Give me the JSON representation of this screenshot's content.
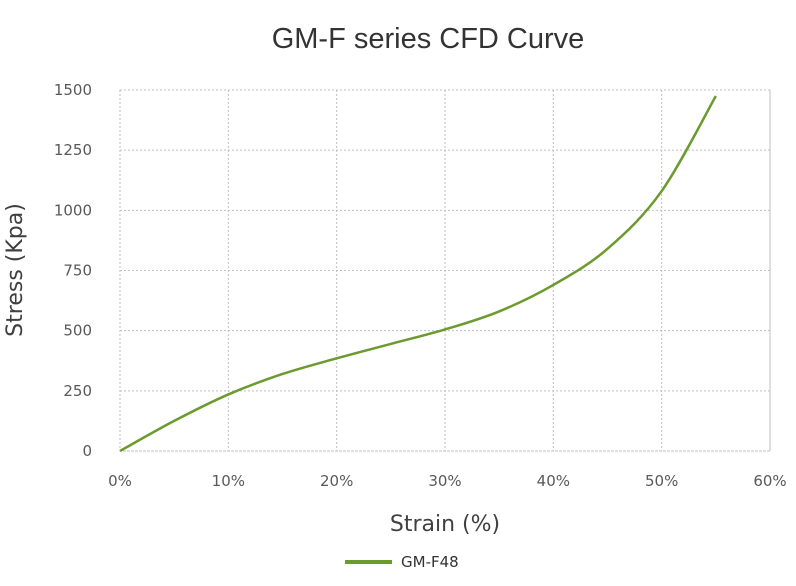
{
  "chart_data": {
    "type": "line",
    "title": "GM-F series CFD Curve",
    "xlabel": "Strain (%)",
    "ylabel": "Stress (Kpa)",
    "xlim": [
      0,
      60
    ],
    "ylim": [
      0,
      1500
    ],
    "x_ticks": [
      0,
      10,
      20,
      30,
      40,
      50,
      60
    ],
    "x_tick_labels": [
      "0%",
      "10%",
      "20%",
      "30%",
      "40%",
      "50%",
      "60%"
    ],
    "y_ticks": [
      0,
      250,
      500,
      750,
      1000,
      1250,
      1500
    ],
    "y_tick_labels": [
      "0",
      "250",
      "500",
      "750",
      "1000",
      "1250",
      "1500"
    ],
    "grid": true,
    "legend_position": "bottom-center",
    "series": [
      {
        "name": "GM-F48",
        "color": "#6b9a2e",
        "x": [
          0,
          5,
          10,
          15,
          20,
          25,
          30,
          35,
          40,
          45,
          50,
          55
        ],
        "y": [
          0,
          125,
          235,
          320,
          385,
          445,
          505,
          580,
          690,
          840,
          1080,
          1475
        ]
      }
    ]
  }
}
